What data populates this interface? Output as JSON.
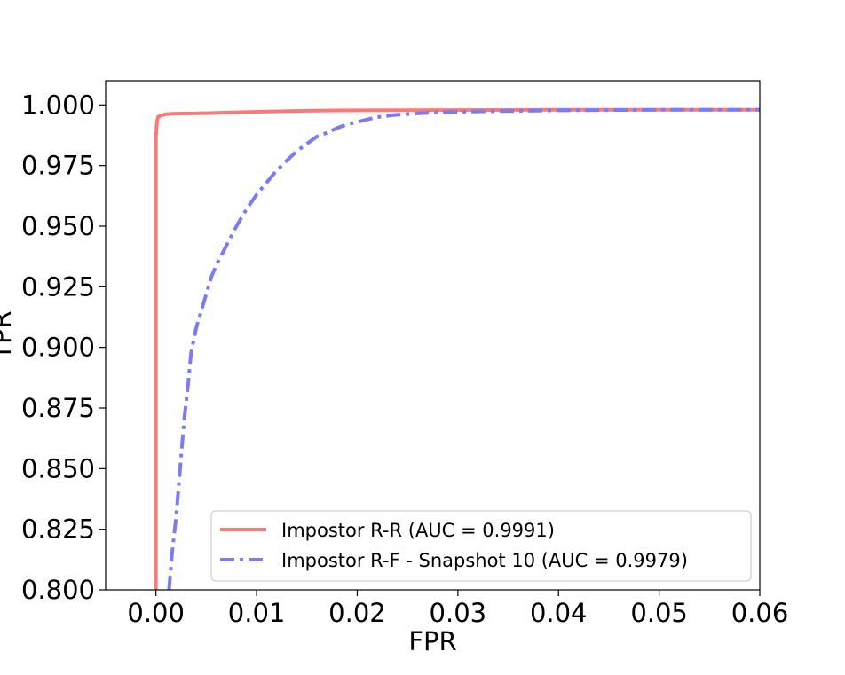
{
  "chart_data": {
    "type": "line",
    "title": "",
    "xlabel": "FPR",
    "ylabel": "TPR",
    "xlim": [
      -0.005,
      0.06
    ],
    "ylim": [
      0.8,
      1.01
    ],
    "xticks": [
      0.0,
      0.01,
      0.02,
      0.03,
      0.04,
      0.05,
      0.06
    ],
    "xtick_labels": [
      "0.00",
      "0.01",
      "0.02",
      "0.03",
      "0.04",
      "0.05",
      "0.06"
    ],
    "yticks": [
      0.8,
      0.825,
      0.85,
      0.875,
      0.9,
      0.925,
      0.95,
      0.975,
      1.0
    ],
    "ytick_labels": [
      "0.800",
      "0.825",
      "0.850",
      "0.875",
      "0.900",
      "0.925",
      "0.950",
      "0.975",
      "1.000"
    ],
    "grid": false,
    "legend_position": "lower-right",
    "series": [
      {
        "name": "Impostor R-R (AUC = 0.9991)",
        "color": "#f87a79",
        "style": "solid",
        "x": [
          0.0,
          0.0,
          0.0001,
          0.0002,
          0.0004,
          0.001,
          0.002,
          0.005,
          0.01,
          0.015,
          0.02,
          0.03,
          0.04,
          0.05,
          0.06
        ],
        "y": [
          0.8,
          0.987,
          0.993,
          0.995,
          0.9955,
          0.9962,
          0.9964,
          0.9966,
          0.9972,
          0.9976,
          0.9978,
          0.9979,
          0.998,
          0.998,
          0.998
        ]
      },
      {
        "name": "Impostor R-F - Snapshot 10 (AUC = 0.9979)",
        "color": "#7b7bf7",
        "style": "dashdot",
        "x": [
          0.0013,
          0.0016,
          0.002,
          0.0024,
          0.0028,
          0.0032,
          0.0035,
          0.004,
          0.0045,
          0.005,
          0.0055,
          0.006,
          0.007,
          0.008,
          0.009,
          0.01,
          0.011,
          0.012,
          0.013,
          0.014,
          0.015,
          0.016,
          0.017,
          0.018,
          0.019,
          0.02,
          0.022,
          0.024,
          0.026,
          0.028,
          0.03,
          0.035,
          0.04,
          0.05,
          0.06
        ],
        "y": [
          0.8,
          0.815,
          0.83,
          0.85,
          0.87,
          0.885,
          0.898,
          0.908,
          0.915,
          0.922,
          0.929,
          0.934,
          0.942,
          0.95,
          0.957,
          0.963,
          0.968,
          0.973,
          0.977,
          0.981,
          0.984,
          0.987,
          0.9885,
          0.9905,
          0.992,
          0.993,
          0.995,
          0.996,
          0.9965,
          0.997,
          0.9972,
          0.9975,
          0.9978,
          0.998,
          0.998
        ]
      }
    ]
  }
}
